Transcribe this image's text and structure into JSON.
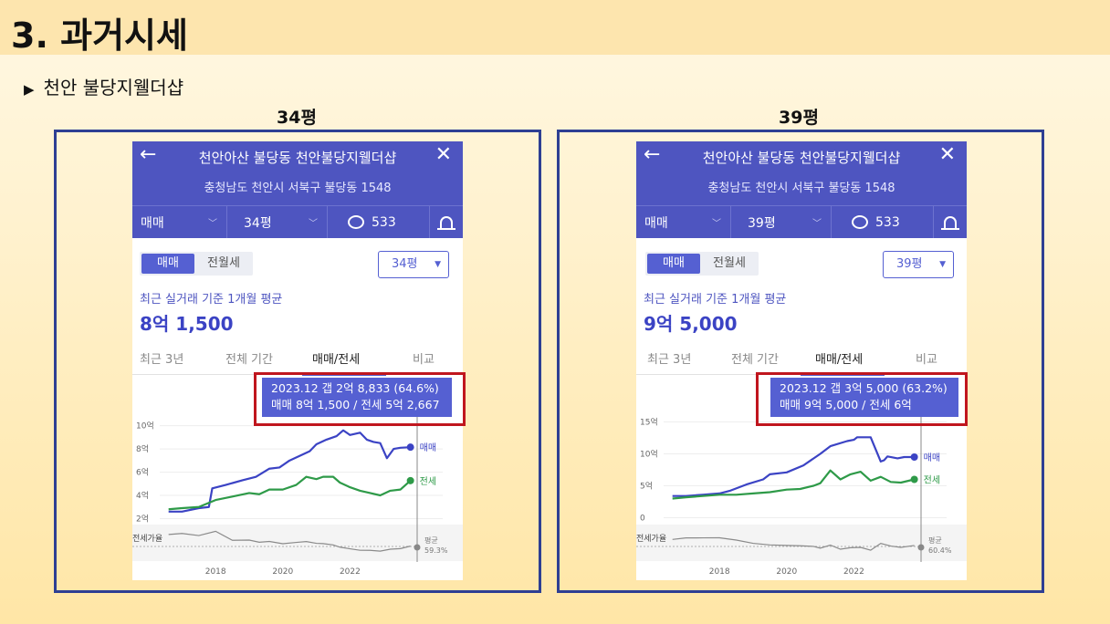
{
  "page_title": "3. 과거시세",
  "subtitle": {
    "bullet": "▶",
    "text": "천안 불당지웰더샵"
  },
  "panels": [
    {
      "size_label": "34평",
      "header": {
        "title": "천안아산 불당동 천안불당지웰더샵",
        "address": "충청남도 천안시 서북구 불당동 1548",
        "trade_type": "매매",
        "area": "34평",
        "comment_count": "533",
        "back": "←",
        "close": "✕"
      },
      "toggle": {
        "active": "매매",
        "inactive": "전월세"
      },
      "dropdown": "34평",
      "basis_text": "최근 실거래 기준 1개월 평균",
      "avg_price": "8억 1,500",
      "tabs": [
        "최근 3년",
        "전체 기간",
        "매매/전세",
        "비교"
      ],
      "active_tab": 2,
      "tooltip": {
        "line1": "2023.12  갭 2억 8,833 (64.6%)",
        "line2": "매매 8억 1,500 / 전세 5억 2,667"
      },
      "chart_data": {
        "type": "line",
        "y_tick_labels": [
          "10억",
          "8억",
          "6억",
          "4억",
          "2억"
        ],
        "y_ticks": [
          10,
          8,
          6,
          4,
          2
        ],
        "ylim": [
          1.8,
          10.6
        ],
        "x_tick_labels": [
          "2018",
          "2020",
          "2022"
        ],
        "x_ticks": [
          2018,
          2020,
          2022
        ],
        "xlim": [
          2016.5,
          2024.0
        ],
        "series": [
          {
            "name": "매매",
            "color": "#3b43c4",
            "x": [
              2016.6,
              2017.0,
              2017.5,
              2017.8,
              2017.9,
              2018.3,
              2018.8,
              2019.2,
              2019.6,
              2019.9,
              2020.2,
              2020.5,
              2020.8,
              2021.0,
              2021.3,
              2021.6,
              2021.8,
              2022.0,
              2022.3,
              2022.5,
              2022.7,
              2022.9,
              2023.1,
              2023.3,
              2023.5,
              2023.8
            ],
            "values": [
              2.6,
              2.6,
              2.9,
              3.0,
              4.6,
              4.9,
              5.3,
              5.6,
              6.3,
              6.4,
              7.0,
              7.4,
              7.8,
              8.4,
              8.8,
              9.1,
              9.6,
              9.2,
              9.4,
              8.8,
              8.6,
              8.5,
              7.2,
              8.0,
              8.1,
              8.15
            ]
          },
          {
            "name": "전세",
            "color": "#2e9a48",
            "x": [
              2016.6,
              2017.0,
              2017.5,
              2018.0,
              2018.5,
              2019.0,
              2019.3,
              2019.6,
              2020.0,
              2020.4,
              2020.7,
              2021.0,
              2021.2,
              2021.5,
              2021.7,
              2022.0,
              2022.3,
              2022.6,
              2022.9,
              2023.2,
              2023.5,
              2023.8
            ],
            "values": [
              2.8,
              2.9,
              3.0,
              3.6,
              3.9,
              4.2,
              4.1,
              4.5,
              4.5,
              4.9,
              5.6,
              5.4,
              5.6,
              5.6,
              5.1,
              4.7,
              4.4,
              4.2,
              4.0,
              4.4,
              4.5,
              5.27
            ]
          }
        ],
        "jeonse_ratio_label": "전세가율",
        "average_label": "평균",
        "average_value": "59.3%"
      }
    },
    {
      "size_label": "39평",
      "header": {
        "title": "천안아산 불당동 천안불당지웰더샵",
        "address": "충청남도 천안시 서북구 불당동 1548",
        "trade_type": "매매",
        "area": "39평",
        "comment_count": "533",
        "back": "←",
        "close": "✕"
      },
      "toggle": {
        "active": "매매",
        "inactive": "전월세"
      },
      "dropdown": "39평",
      "basis_text": "최근 실거래 기준 1개월 평균",
      "avg_price": "9억 5,000",
      "tabs": [
        "최근 3년",
        "전체 기간",
        "매매/전세",
        "비교"
      ],
      "active_tab": 2,
      "tooltip": {
        "line1": "2023.12  갭 3억 5,000 (63.2%)",
        "line2": "매매 9억 5,000 / 전세 6억"
      },
      "chart_data": {
        "type": "line",
        "y_tick_labels": [
          "15억",
          "10억",
          "5억",
          "0"
        ],
        "y_ticks": [
          15,
          10,
          5,
          0
        ],
        "ylim": [
          -0.5,
          15.5
        ],
        "x_tick_labels": [
          "2018",
          "2020",
          "2022"
        ],
        "x_ticks": [
          2018,
          2020,
          2022
        ],
        "xlim": [
          2016.5,
          2024.0
        ],
        "series": [
          {
            "name": "매매",
            "color": "#3b43c4",
            "x": [
              2016.6,
              2017.0,
              2017.5,
              2018.0,
              2018.3,
              2018.8,
              2019.3,
              2019.5,
              2020.0,
              2020.5,
              2021.0,
              2021.3,
              2021.8,
              2022.0,
              2022.1,
              2022.5,
              2022.8,
              2022.9,
              2023.0,
              2023.3,
              2023.5,
              2023.8
            ],
            "values": [
              3.4,
              3.4,
              3.6,
              3.8,
              4.2,
              5.2,
              6.0,
              6.8,
              7.1,
              8.2,
              10.0,
              11.2,
              12.0,
              12.2,
              12.6,
              12.6,
              8.8,
              9.0,
              9.6,
              9.3,
              9.5,
              9.5
            ]
          },
          {
            "name": "전세",
            "color": "#2e9a48",
            "x": [
              2016.6,
              2017.0,
              2017.5,
              2018.0,
              2018.5,
              2019.0,
              2019.5,
              2020.0,
              2020.4,
              2020.8,
              2021.0,
              2021.3,
              2021.6,
              2021.9,
              2022.2,
              2022.5,
              2022.8,
              2023.1,
              2023.4,
              2023.8
            ],
            "values": [
              3.0,
              3.2,
              3.4,
              3.6,
              3.6,
              3.8,
              4.0,
              4.4,
              4.5,
              5.0,
              5.4,
              7.4,
              6.0,
              6.8,
              7.2,
              5.8,
              6.4,
              5.6,
              5.5,
              6.0
            ]
          }
        ],
        "jeonse_ratio_label": "전세가율",
        "average_label": "평균",
        "average_value": "60.4%"
      }
    }
  ]
}
